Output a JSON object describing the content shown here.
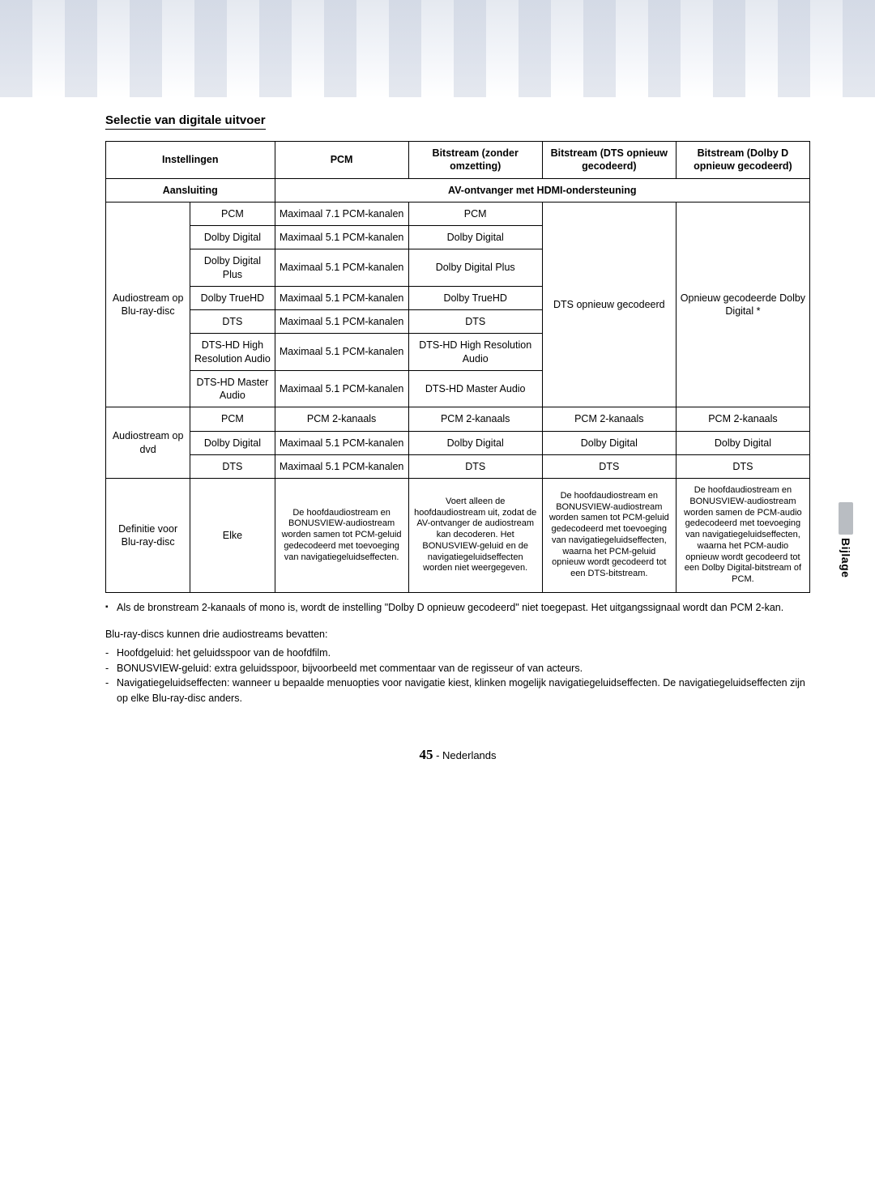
{
  "side_tab": "Bijlage",
  "section_title": "Selectie van digitale uitvoer",
  "headers": {
    "settings": "Instellingen",
    "pcm": "PCM",
    "bit_no_conv": "Bitstream (zonder omzetting)",
    "bit_dts_re": "Bitstream (DTS opnieuw gecodeerd)",
    "bit_dolby_re": "Bitstream (Dolby D opnieuw gecodeerd)",
    "connection": "Aansluiting",
    "hdmi_receiver": "AV-ontvanger met HDMI-ondersteuning"
  },
  "row_groups": {
    "bluray": "Audiostream op Blu-ray-disc",
    "dvd": "Audiostream op dvd",
    "def": "Definitie voor Blu-ray-disc"
  },
  "bluray_rows": [
    {
      "fmt": "PCM",
      "pcm": "Maximaal 7.1 PCM-kanalen",
      "bit": "PCM"
    },
    {
      "fmt": "Dolby Digital",
      "pcm": "Maximaal 5.1 PCM-kanalen",
      "bit": "Dolby Digital"
    },
    {
      "fmt": "Dolby Digital Plus",
      "pcm": "Maximaal 5.1 PCM-kanalen",
      "bit": "Dolby Digital Plus"
    },
    {
      "fmt": "Dolby TrueHD",
      "pcm": "Maximaal 5.1 PCM-kanalen",
      "bit": "Dolby TrueHD"
    },
    {
      "fmt": "DTS",
      "pcm": "Maximaal 5.1 PCM-kanalen",
      "bit": "DTS"
    },
    {
      "fmt": "DTS-HD High Resolution Audio",
      "pcm": "Maximaal 5.1 PCM-kanalen",
      "bit": "DTS-HD High Resolution Audio"
    },
    {
      "fmt": "DTS-HD Master Audio",
      "pcm": "Maximaal 5.1 PCM-kanalen",
      "bit": "DTS-HD Master Audio"
    }
  ],
  "bluray_dts_re": "DTS opnieuw gecodeerd",
  "bluray_dolby_re": "Opnieuw gecodeerde Dolby Digital *",
  "dvd_rows": [
    {
      "fmt": "PCM",
      "pcm": "PCM 2-kanaals",
      "bit": "PCM 2-kanaals",
      "dts": "PCM 2-kanaals",
      "dolby": "PCM 2-kanaals"
    },
    {
      "fmt": "Dolby Digital",
      "pcm": "Maximaal 5.1 PCM-kanalen",
      "bit": "Dolby Digital",
      "dts": "Dolby Digital",
      "dolby": "Dolby Digital"
    },
    {
      "fmt": "DTS",
      "pcm": "Maximaal 5.1 PCM-kanalen",
      "bit": "DTS",
      "dts": "DTS",
      "dolby": "DTS"
    }
  ],
  "def_row": {
    "fmt": "Elke",
    "pcm": "De hoofdaudiostream en BONUSVIEW-audiostream worden samen tot PCM-geluid gedecodeerd met toevoeging van navigatiegeluidseffecten.",
    "bit": "Voert alleen de hoofdaudiostream uit, zodat de AV-ontvanger de audiostream kan decoderen. Het BONUSVIEW-geluid en de navigatiegeluidseffecten worden niet weergegeven.",
    "dts": "De hoofdaudiostream en BONUSVIEW-audiostream worden samen tot PCM-geluid gedecodeerd met toevoeging van navigatiegeluidseffecten, waarna het PCM-geluid opnieuw wordt gecodeerd tot een DTS-bitstream.",
    "dolby": "De hoofdaudiostream en BONUSVIEW-audiostream worden samen de PCM-audio gedecodeerd met toevoeging van navigatiegeluidseffecten, waarna het PCM-audio opnieuw wordt gecodeerd tot een Dolby Digital-bitstream of PCM."
  },
  "footnote": "Als de bronstream 2-kanaals of mono is, wordt de instelling \"Dolby D opnieuw gecodeerd\" niet toegepast. Het uitgangssignaal wordt dan PCM 2-kan.",
  "paragraph": "Blu-ray-discs kunnen drie audiostreams bevatten:",
  "bullets": [
    "Hoofdgeluid: het geluidsspoor van de hoofdfilm.",
    "BONUSVIEW-geluid: extra geluidsspoor, bijvoorbeeld met commentaar van de regisseur of van acteurs.",
    "Navigatiegeluidseffecten: wanneer u bepaalde menuopties voor navigatie kiest, klinken mogelijk navigatiegeluidseffecten. De navigatiegeluidseffecten zijn op elke Blu-ray-disc anders."
  ],
  "page": {
    "num": "45",
    "lang": "Nederlands"
  }
}
